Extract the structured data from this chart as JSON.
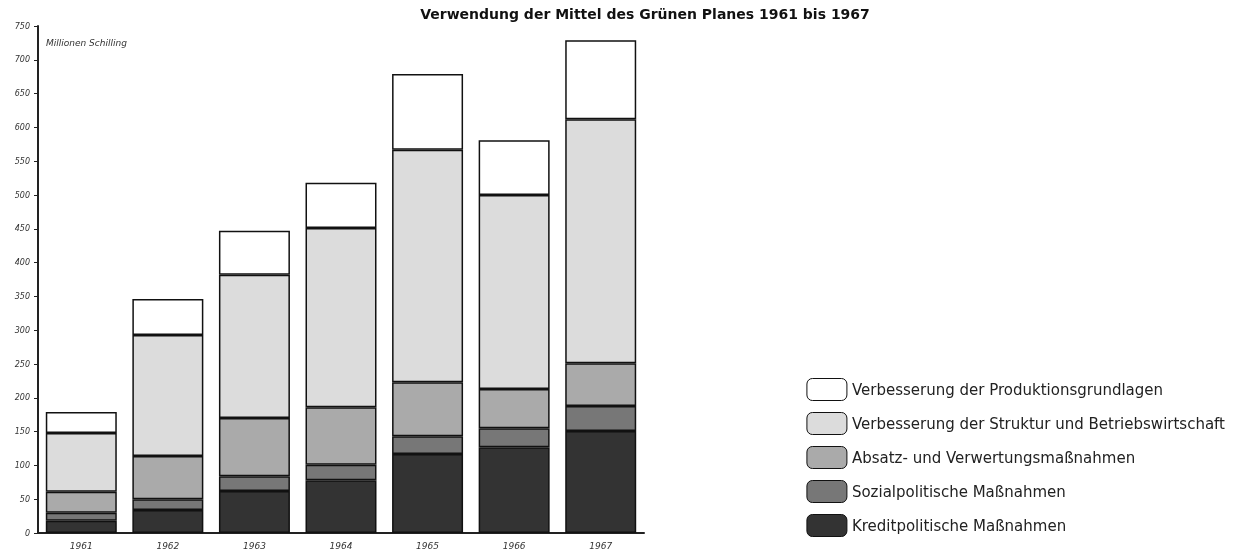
{
  "chart_data": {
    "type": "bar",
    "title": "Verwendung der Mittel des Grünen Planes 1961 bis 1967",
    "ylabel": "Millionen Schilling",
    "categories": [
      "1961",
      "1962",
      "1963",
      "1964",
      "1965",
      "1966",
      "1967"
    ],
    "stacked": true,
    "series": [
      {
        "name": "Kreditpolitische Maßnahmen",
        "color": "#333333",
        "values": [
          18,
          34,
          62,
          78,
          117,
          127,
          151
        ]
      },
      {
        "name": "Sozialpolitische Maßnahmen",
        "color": "#777777",
        "values": [
          12,
          16,
          22,
          23,
          26,
          28,
          37
        ]
      },
      {
        "name": "Absatz- und Verwertungsmaßnahmen",
        "color": "#aaaaaa",
        "values": [
          31,
          64,
          86,
          85,
          80,
          58,
          63
        ]
      },
      {
        "name": "Verbesserung der Struktur und Betriebswirtschaft",
        "color": "#dcdcdc",
        "values": [
          87,
          179,
          212,
          265,
          344,
          287,
          361
        ]
      },
      {
        "name": "Verbesserung der Produktionsgrundlagen",
        "color": "#ffffff",
        "values": [
          31,
          53,
          65,
          67,
          112,
          81,
          117
        ]
      }
    ],
    "ylim": [
      0,
      750
    ],
    "yticks": [
      0,
      50,
      100,
      150,
      200,
      250,
      300,
      350,
      400,
      450,
      500,
      550,
      600,
      650,
      700,
      750
    ],
    "grid": false,
    "legend": "bottom right"
  }
}
